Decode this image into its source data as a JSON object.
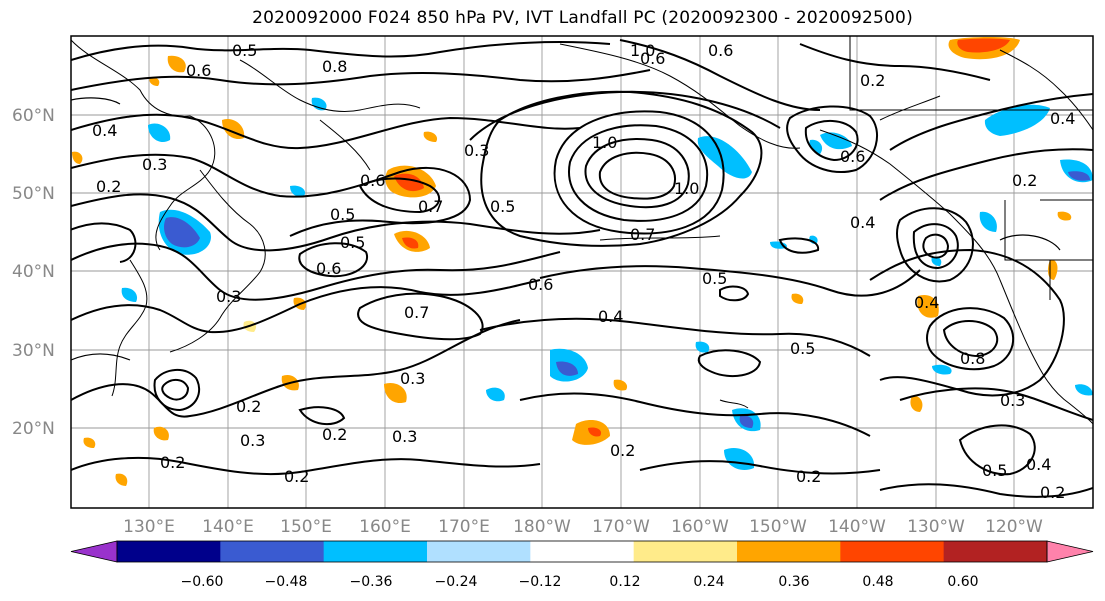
{
  "title": "2020092000 F024 850 hPa PV, IVT Landfall PC (2020092300 - 2020092500)",
  "lat_labels": [
    "60°N",
    "50°N",
    "40°N",
    "30°N",
    "20°N"
  ],
  "lon_labels": [
    "130°E",
    "140°E",
    "150°E",
    "160°E",
    "170°E",
    "180°W",
    "170°W",
    "160°W",
    "150°W",
    "140°W",
    "130°W",
    "120°W"
  ],
  "colorbar": {
    "colors": [
      "#9932cc",
      "#00008b",
      "#3a5bd1",
      "#00bfff",
      "#b0e0ff",
      "#ffffff",
      "#ffeb8a",
      "#ffa500",
      "#ff4500",
      "#b22222",
      "#ff82ab"
    ],
    "tick_labels": [
      "−0.60",
      "−0.48",
      "−0.36",
      "−0.24",
      "−0.12",
      "0.12",
      "0.24",
      "0.36",
      "0.48",
      "0.60"
    ]
  },
  "contour_labels": [
    {
      "text": "0.5"
    },
    {
      "text": "0.6"
    },
    {
      "text": "0.4"
    },
    {
      "text": "0.3"
    },
    {
      "text": "0.2"
    },
    {
      "text": "0.6"
    },
    {
      "text": "0.7"
    },
    {
      "text": "0.5"
    },
    {
      "text": "0.5"
    },
    {
      "text": "0.6"
    },
    {
      "text": "0.3"
    },
    {
      "text": "0.7"
    },
    {
      "text": "0.3"
    },
    {
      "text": "0.5"
    },
    {
      "text": "1.0"
    },
    {
      "text": "1.0"
    },
    {
      "text": "0.7"
    },
    {
      "text": "0.6"
    },
    {
      "text": "0.4"
    },
    {
      "text": "0.5"
    },
    {
      "text": "0.5"
    },
    {
      "text": "0.6"
    },
    {
      "text": "0.4"
    },
    {
      "text": "0.2"
    },
    {
      "text": "0.2"
    },
    {
      "text": "0.3"
    },
    {
      "text": "0.2"
    },
    {
      "text": "0.3"
    },
    {
      "text": "0.2"
    },
    {
      "text": "0.2"
    },
    {
      "text": "0.6"
    },
    {
      "text": "0.2"
    },
    {
      "text": "0.2"
    },
    {
      "text": "0.4"
    },
    {
      "text": "0.8"
    },
    {
      "text": "0.3"
    },
    {
      "text": "0.2"
    },
    {
      "text": "0.5"
    },
    {
      "text": "0.4"
    },
    {
      "text": "0.2"
    },
    {
      "text": "0.3"
    },
    {
      "text": "1.0"
    },
    {
      "text": "0.6"
    },
    {
      "text": "0.8"
    },
    {
      "text": "0.4"
    }
  ]
}
